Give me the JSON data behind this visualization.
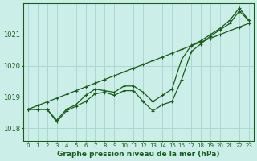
{
  "title": "Graphe pression niveau de la mer (hPa)",
  "bg_color": "#cceee8",
  "grid_color": "#aad8d0",
  "line_color": "#1a5c1a",
  "xlim": [
    -0.5,
    23.5
  ],
  "ylim": [
    1017.6,
    1022.0
  ],
  "yticks": [
    1018,
    1019,
    1020,
    1021
  ],
  "xticks": [
    0,
    1,
    2,
    3,
    4,
    5,
    6,
    7,
    8,
    9,
    10,
    11,
    12,
    13,
    14,
    15,
    16,
    17,
    18,
    19,
    20,
    21,
    22,
    23
  ],
  "series_smooth": [
    1018.6,
    1018.72,
    1018.84,
    1018.96,
    1019.08,
    1019.2,
    1019.32,
    1019.44,
    1019.56,
    1019.68,
    1019.8,
    1019.92,
    1020.04,
    1020.16,
    1020.28,
    1020.4,
    1020.52,
    1020.64,
    1020.76,
    1020.88,
    1021.0,
    1021.12,
    1021.24,
    1021.36
  ],
  "series_main": [
    1018.6,
    1018.6,
    1018.6,
    1018.2,
    1018.55,
    1018.7,
    1018.85,
    1019.1,
    1019.15,
    1019.05,
    1019.2,
    1019.2,
    1018.85,
    1018.55,
    1018.75,
    1018.85,
    1019.55,
    1020.45,
    1020.7,
    1020.95,
    1021.15,
    1021.35,
    1021.75,
    1021.45
  ],
  "series_upper": [
    1018.6,
    1018.6,
    1018.6,
    1018.25,
    1018.6,
    1018.75,
    1019.05,
    1019.25,
    1019.2,
    1019.15,
    1019.35,
    1019.35,
    1019.15,
    1018.85,
    1019.05,
    1019.25,
    1020.2,
    1020.65,
    1020.8,
    1021.0,
    1021.2,
    1021.45,
    1021.85,
    1021.45
  ]
}
